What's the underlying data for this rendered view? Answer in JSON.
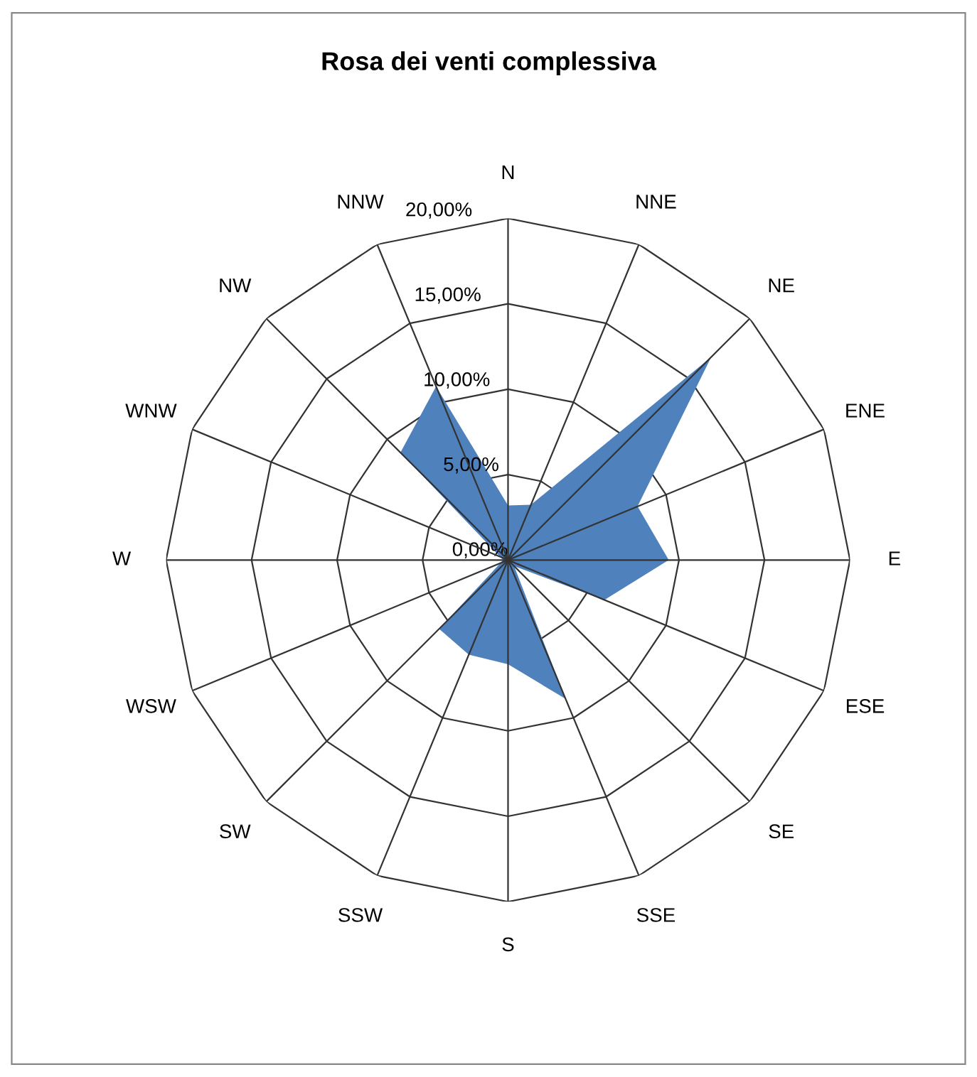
{
  "chart_data": {
    "type": "radar",
    "title": "Rosa dei venti complessiva",
    "categories": [
      "N",
      "NNE",
      "NE",
      "ENE",
      "E",
      "ESE",
      "SE",
      "SSE",
      "S",
      "SSW",
      "SW",
      "WSW",
      "W",
      "WNW",
      "NW",
      "NNW"
    ],
    "series": [
      {
        "color": "#4f81bd",
        "values": [
          3.2,
          3.5,
          16.8,
          8.2,
          9.4,
          6.1,
          0.5,
          8.8,
          6.1,
          6.0,
          5.7,
          0.5,
          0.3,
          0.5,
          8.9,
          11.0
        ]
      }
    ],
    "ylim": [
      0,
      20
    ],
    "yticks": [
      {
        "value": 0,
        "label": "0,00%"
      },
      {
        "value": 5,
        "label": "5,00%"
      },
      {
        "value": 10,
        "label": "10,00%"
      },
      {
        "value": 15,
        "label": "15,00%"
      },
      {
        "value": 20,
        "label": "20,00%"
      }
    ],
    "grid": true
  }
}
